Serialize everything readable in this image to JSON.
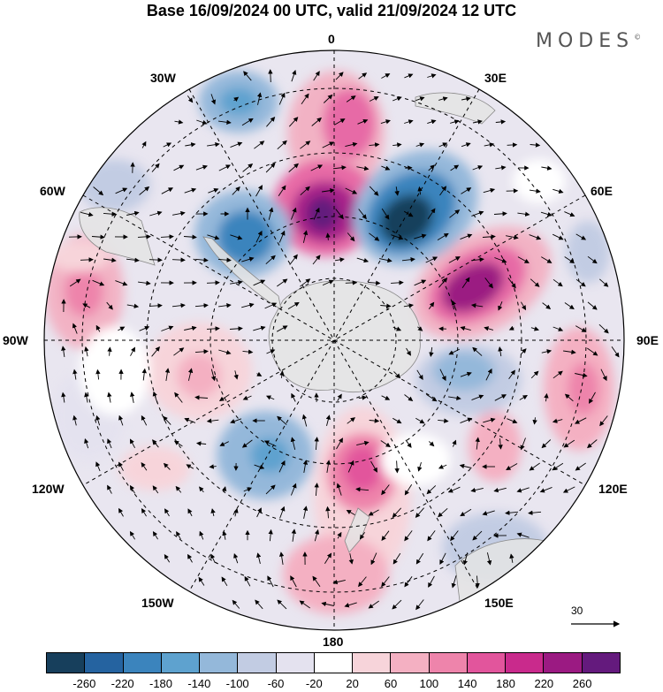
{
  "title": "Base 16/09/2024 00 UTC, valid 21/09/2024 12 UTC",
  "brand": "MODES",
  "brand_mark": "©",
  "longitude_labels": {
    "top": "0",
    "top_left": "30W",
    "top_right": "30E",
    "upper_left": "60W",
    "upper_right": "60E",
    "left": "90W",
    "right": "90E",
    "lower_left": "120W",
    "lower_right": "120E",
    "bottom_left": "150W",
    "bottom_right": "150E",
    "bottom": "180"
  },
  "reference_vector": {
    "label": "30"
  },
  "colorbar": {
    "colors": [
      "#173f5c",
      "#2563a0",
      "#3b84bd",
      "#5ea2cf",
      "#94b8da",
      "#c2cce3",
      "#e4e2ef",
      "#ffffff",
      "#f7d4da",
      "#f4b0c2",
      "#ee84ab",
      "#e2559c",
      "#c92a8c",
      "#9b1a82",
      "#641a7d"
    ],
    "labels": [
      "-260",
      "-220",
      "-180",
      "-140",
      "-100",
      "-60",
      "-20",
      "20",
      "60",
      "100",
      "140",
      "180",
      "220",
      "260"
    ]
  },
  "map": {
    "projection": "south-polar-stereographic",
    "field_colors": {
      "neg_strong": "#1f4f74",
      "neg_mid": "#4b8cc2",
      "neg_weak": "#a9bfdc",
      "neg_faint": "#d9dcec",
      "pos_faint": "#f8d9df",
      "pos_weak": "#f2b2c4",
      "pos_mid": "#e76aa6",
      "pos_strong": "#a8208a",
      "land": "#e4e4e4"
    }
  }
}
